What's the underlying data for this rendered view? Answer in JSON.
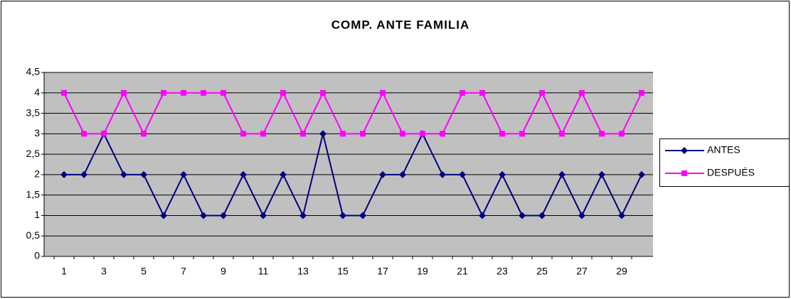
{
  "chart_data": {
    "type": "line",
    "title": "COMP. ANTE FAMILIA",
    "categories": [
      1,
      null,
      3,
      null,
      5,
      null,
      7,
      null,
      9,
      null,
      11,
      null,
      13,
      null,
      15,
      null,
      17,
      null,
      19,
      null,
      21,
      null,
      23,
      null,
      25,
      null,
      27,
      null,
      29,
      null
    ],
    "series": [
      {
        "name": "ANTES",
        "color": "#000080",
        "marker": "diamond",
        "values": [
          2,
          2,
          3,
          2,
          2,
          1,
          2,
          1,
          1,
          2,
          1,
          2,
          1,
          3,
          1,
          1,
          2,
          2,
          3,
          2,
          2,
          1,
          2,
          1,
          1,
          2,
          1,
          2,
          1,
          2
        ]
      },
      {
        "name": "DESPUÉS",
        "color": "#ff00ff",
        "marker": "square",
        "values": [
          4,
          3,
          3,
          4,
          3,
          4,
          4,
          4,
          4,
          3,
          3,
          4,
          3,
          4,
          3,
          3,
          4,
          3,
          3,
          3,
          4,
          4,
          3,
          3,
          4,
          3,
          4,
          3,
          3,
          4
        ]
      }
    ],
    "ylim": [
      0,
      4.5
    ],
    "yticks": [
      0,
      {
        "value": 0.5,
        "label": "0,5"
      },
      1,
      {
        "value": 1.5,
        "label": "1,5"
      },
      2,
      {
        "value": 2.5,
        "label": "2,5"
      },
      3,
      {
        "value": 3.5,
        "label": "3,5"
      },
      4,
      {
        "value": 4.5,
        "label": "4,5"
      }
    ],
    "grid": true,
    "legend": "right",
    "plot_background": "#c0c0c0"
  }
}
